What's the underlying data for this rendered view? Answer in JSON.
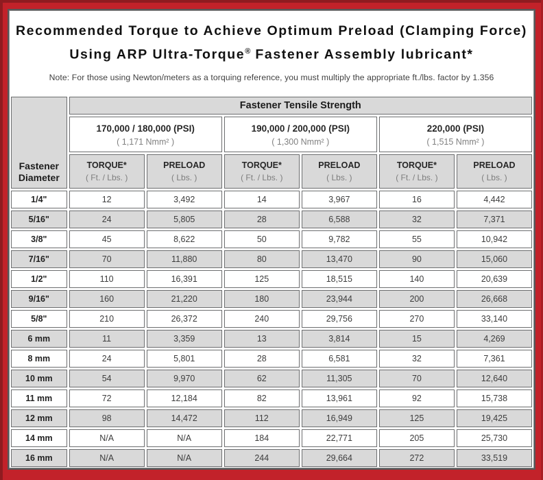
{
  "frame": {
    "red": "#c2222a",
    "red_dark_edge": "#8f1b20",
    "content_border": "#57585a",
    "stripe_gray": "#d9d9d9"
  },
  "title": {
    "line1": "Recommended Torque to Achieve Optimum Preload (Clamping Force)",
    "line2_pre": "Using ARP Ultra-Torque",
    "line2_reg": "®",
    "line2_post": " Fastener Assembly lubricant*",
    "note": "Note: For those using Newton/meters as a torquing reference, you must multiply the appropriate ft./lbs. factor by 1.356"
  },
  "table": {
    "corner_header": "Fastener Diameter",
    "tensile_header": "Fastener Tensile Strength",
    "groups": [
      {
        "psi": "170,000 / 180,000 (PSI)",
        "nmm": "( 1,171 Nmm² )"
      },
      {
        "psi": "190,000 / 200,000 (PSI)",
        "nmm": "( 1,300 Nmm² )"
      },
      {
        "psi": "220,000 (PSI)",
        "nmm": "( 1,515 Nmm² )"
      }
    ],
    "col_headers": {
      "torque": "TORQUE*",
      "torque_sub": "( Ft. / Lbs. )",
      "preload": "PRELOAD",
      "preload_sub": "( Lbs. )"
    },
    "rows": [
      {
        "diameter": "1/4\"",
        "values": [
          "12",
          "3,492",
          "14",
          "3,967",
          "16",
          "4,442"
        ]
      },
      {
        "diameter": "5/16\"",
        "values": [
          "24",
          "5,805",
          "28",
          "6,588",
          "32",
          "7,371"
        ]
      },
      {
        "diameter": "3/8\"",
        "values": [
          "45",
          "8,622",
          "50",
          "9,782",
          "55",
          "10,942"
        ]
      },
      {
        "diameter": "7/16\"",
        "values": [
          "70",
          "11,880",
          "80",
          "13,470",
          "90",
          "15,060"
        ]
      },
      {
        "diameter": "1/2\"",
        "values": [
          "110",
          "16,391",
          "125",
          "18,515",
          "140",
          "20,639"
        ]
      },
      {
        "diameter": "9/16\"",
        "values": [
          "160",
          "21,220",
          "180",
          "23,944",
          "200",
          "26,668"
        ]
      },
      {
        "diameter": "5/8\"",
        "values": [
          "210",
          "26,372",
          "240",
          "29,756",
          "270",
          "33,140"
        ]
      },
      {
        "diameter": "6 mm",
        "values": [
          "11",
          "3,359",
          "13",
          "3,814",
          "15",
          "4,269"
        ]
      },
      {
        "diameter": "8 mm",
        "values": [
          "24",
          "5,801",
          "28",
          "6,581",
          "32",
          "7,361"
        ]
      },
      {
        "diameter": "10 mm",
        "values": [
          "54",
          "9,970",
          "62",
          "11,305",
          "70",
          "12,640"
        ]
      },
      {
        "diameter": "11 mm",
        "values": [
          "72",
          "12,184",
          "82",
          "13,961",
          "92",
          "15,738"
        ]
      },
      {
        "diameter": "12 mm",
        "values": [
          "98",
          "14,472",
          "112",
          "16,949",
          "125",
          "19,425"
        ]
      },
      {
        "diameter": "14 mm",
        "values": [
          "N/A",
          "N/A",
          "184",
          "22,771",
          "205",
          "25,730"
        ]
      },
      {
        "diameter": "16 mm",
        "values": [
          "N/A",
          "N/A",
          "244",
          "29,664",
          "272",
          "33,519"
        ]
      }
    ]
  }
}
